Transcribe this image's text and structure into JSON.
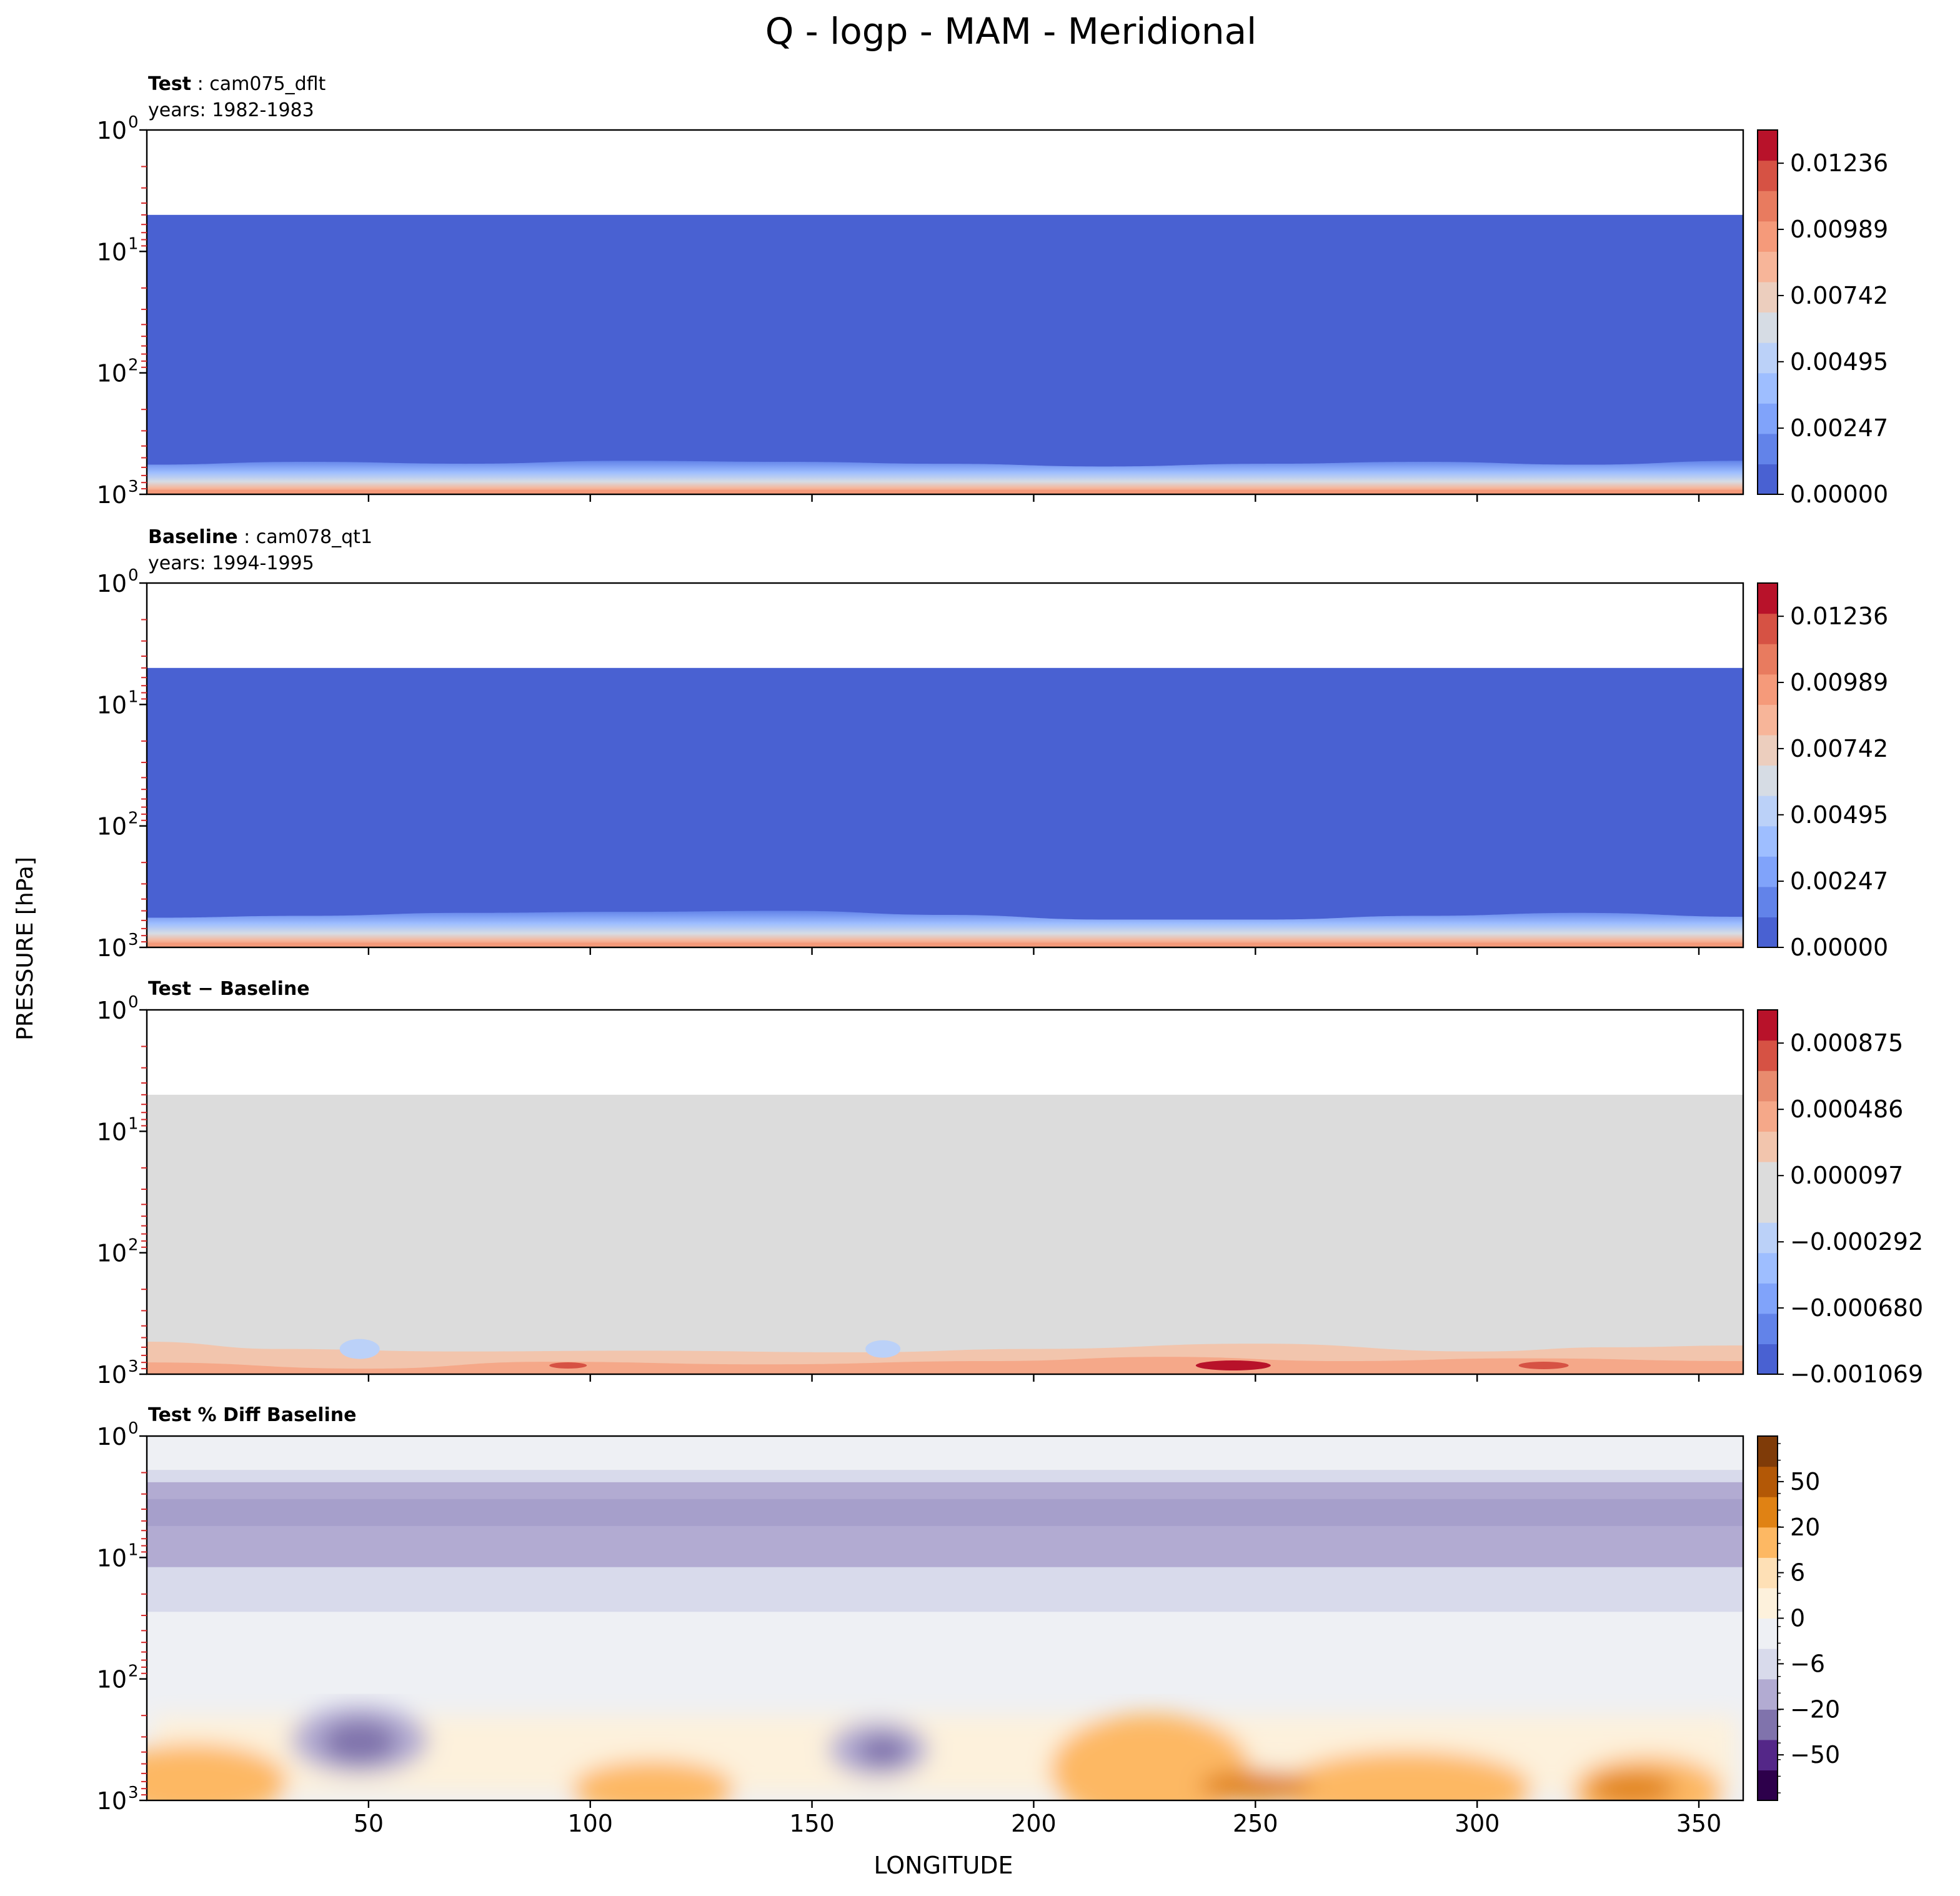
{
  "figure": {
    "title": "Q - logp - MAM - Meridional",
    "ylabel": "PRESSURE [hPa]",
    "xlabel": "LONGITUDE"
  },
  "chart_data": [
    {
      "type": "heatmap",
      "panel": "test",
      "title_bold": "Test",
      "title_rest": ": cam075_dflt",
      "subtitle": "years: 1982-1983",
      "xlim": [
        0,
        360
      ],
      "ylim": [
        1000,
        1
      ],
      "yscale": "log",
      "x_ticks": [
        50,
        100,
        150,
        200,
        250,
        300,
        350
      ],
      "x_tick_labels": false,
      "y_tick_exponents": [
        "0",
        "1",
        "2",
        "3"
      ],
      "model_top_hPa": 5,
      "boundary_layer_top_hPa": [
        570,
        540,
        560,
        530,
        540,
        560,
        590,
        560,
        540,
        570,
        530
      ],
      "colormap": "coolwarm",
      "colorbar": {
        "ticks": [
          "0.00000",
          "0.00247",
          "0.00495",
          "0.00742",
          "0.00989",
          "0.01236"
        ],
        "tick_values": [
          0,
          0.00247,
          0.00495,
          0.00742,
          0.00989,
          0.01236
        ],
        "levels": 11,
        "vmin": 0,
        "vmax": 0.0136,
        "colors": [
          "#4961d2",
          "#6283e9",
          "#80a3fa",
          "#9ebeff",
          "#bbd1f8",
          "#d6dce4",
          "#eccebe",
          "#f7b599",
          "#f59a7a",
          "#e87b5f",
          "#d65244",
          "#b8122a"
        ]
      }
    },
    {
      "type": "heatmap",
      "panel": "baseline",
      "title_bold": "Baseline",
      "title_rest": ": cam078_qt1",
      "subtitle": "years: 1994-1995",
      "xlim": [
        0,
        360
      ],
      "ylim": [
        1000,
        1
      ],
      "yscale": "log",
      "x_ticks": [
        50,
        100,
        150,
        200,
        250,
        300,
        350
      ],
      "x_tick_labels": false,
      "y_tick_exponents": [
        "0",
        "1",
        "2",
        "3"
      ],
      "model_top_hPa": 5,
      "boundary_layer_top_hPa": [
        570,
        550,
        520,
        510,
        500,
        540,
        590,
        590,
        550,
        520,
        560
      ],
      "colormap": "coolwarm",
      "colorbar": {
        "ticks": [
          "0.00000",
          "0.00247",
          "0.00495",
          "0.00742",
          "0.00989",
          "0.01236"
        ],
        "tick_values": [
          0,
          0.00247,
          0.00495,
          0.00742,
          0.00989,
          0.01236
        ],
        "levels": 11,
        "vmin": 0,
        "vmax": 0.0136,
        "colors": [
          "#4961d2",
          "#6283e9",
          "#80a3fa",
          "#9ebeff",
          "#bbd1f8",
          "#d6dce4",
          "#eccebe",
          "#f7b599",
          "#f59a7a",
          "#e87b5f",
          "#d65244",
          "#b8122a"
        ]
      }
    },
    {
      "type": "heatmap",
      "panel": "difference",
      "title_bold": "Test − Baseline",
      "title_rest": "",
      "subtitle": "",
      "xlim": [
        0,
        360
      ],
      "ylim": [
        1000,
        1
      ],
      "yscale": "log",
      "x_ticks": [
        50,
        100,
        150,
        200,
        250,
        300,
        350
      ],
      "x_tick_labels": false,
      "y_tick_exponents": [
        "0",
        "1",
        "2",
        "3"
      ],
      "model_top_hPa": 5,
      "colormap": "coolwarm",
      "colorbar": {
        "ticks": [
          "−0.001069",
          "−0.000680",
          "−0.000292",
          "0.000097",
          "0.000486",
          "0.000875"
        ],
        "tick_values": [
          -0.001069,
          -0.00068,
          -0.000292,
          9.7e-05,
          0.000486,
          0.000875
        ],
        "vmin": -0.001069,
        "vmax": 0.00107,
        "colors": [
          "#4961d2",
          "#6283e9",
          "#80a3fa",
          "#9ebeff",
          "#bbd1f8",
          "#dcdcdc",
          "#dcdcdc",
          "#f2c5ad",
          "#f5a889",
          "#e88b6e",
          "#d65244",
          "#b8122a"
        ]
      }
    },
    {
      "type": "heatmap",
      "panel": "percent_difference",
      "title_bold": "Test % Diff Baseline",
      "title_rest": "",
      "subtitle": "",
      "xlim": [
        0,
        360
      ],
      "ylim": [
        1000,
        1
      ],
      "yscale": "log",
      "x_ticks": [
        50,
        100,
        150,
        200,
        250,
        300,
        350
      ],
      "x_tick_labels": [
        "50",
        "100",
        "150",
        "200",
        "250",
        "300",
        "350"
      ],
      "y_tick_exponents": [
        "0",
        "1",
        "2",
        "3"
      ],
      "colormap": "PuOr_r",
      "colorbar": {
        "ticks": [
          "−50",
          "−20",
          "−6",
          "0",
          "6",
          "20",
          "50"
        ],
        "tick_values": [
          -50,
          -20,
          -6,
          0,
          6,
          20,
          50
        ],
        "colors": [
          "#2d004b",
          "#542788",
          "#8073ac",
          "#b2abd2",
          "#d8daeb",
          "#eef0f4",
          "#fdf1dc",
          "#fee0b6",
          "#fdb863",
          "#e08214",
          "#b35806",
          "#7f3b08"
        ]
      }
    }
  ]
}
